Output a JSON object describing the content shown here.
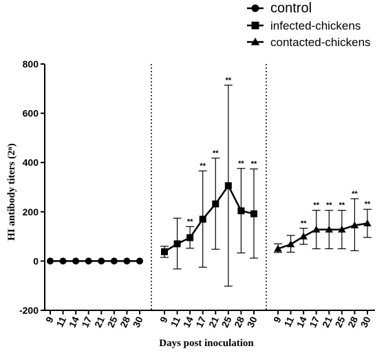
{
  "chart_data": {
    "type": "line",
    "ylabel": "HI antibody titers (2ⁿ)",
    "xlabel": "Days post inoculation",
    "ylim": [
      -200,
      800
    ],
    "yticks": [
      "-200",
      "0",
      "200",
      "400",
      "600",
      "800"
    ],
    "categories": [
      "9",
      "11",
      "14",
      "17",
      "21",
      "25",
      "28",
      "30"
    ],
    "grid": false,
    "legend_position": "top-right",
    "series": [
      {
        "name": "control",
        "marker": "circle",
        "values": [
          0,
          0,
          0,
          0,
          0,
          0,
          0,
          0
        ],
        "error_low": [
          0,
          0,
          0,
          0,
          0,
          0,
          0,
          0
        ],
        "error_high": [
          0,
          0,
          0,
          0,
          0,
          0,
          0,
          0
        ],
        "significance": [
          "",
          "",
          "",
          "",
          "",
          "",
          "",
          ""
        ]
      },
      {
        "name": "infected-chickens",
        "marker": "square",
        "values": [
          38,
          70,
          95,
          170,
          232,
          306,
          204,
          192
        ],
        "error_low": [
          15,
          -32,
          52,
          -25,
          48,
          -102,
          33,
          12
        ],
        "error_high": [
          60,
          174,
          140,
          366,
          418,
          714,
          376,
          374
        ],
        "significance": [
          "",
          "",
          "**",
          "**",
          "**",
          "**",
          "**",
          "**"
        ]
      },
      {
        "name": "contacted-chickens",
        "marker": "triangle",
        "values": [
          50,
          68,
          100,
          128,
          128,
          128,
          145,
          153
        ],
        "error_low": [
          35,
          36,
          68,
          50,
          50,
          50,
          42,
          96
        ],
        "error_high": [
          70,
          104,
          133,
          206,
          206,
          206,
          253,
          210
        ],
        "significance": [
          "",
          "",
          "**",
          "**",
          "**",
          "**",
          "**",
          "**"
        ]
      }
    ]
  }
}
